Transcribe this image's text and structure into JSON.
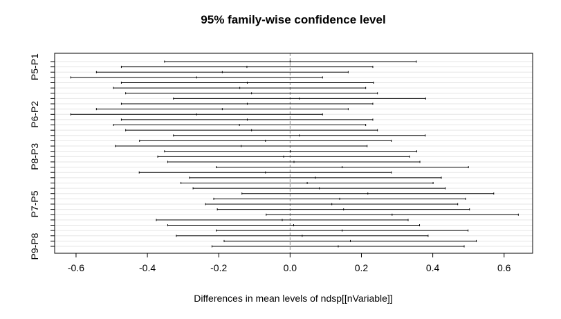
{
  "chart_data": {
    "type": "interval",
    "title": "95% family-wise confidence level",
    "xlabel": "Differences in mean levels of ndsp[[nVariable]]",
    "ylabel": "",
    "xlim": [
      -0.66,
      0.68
    ],
    "x_ticks": [
      -0.6,
      -0.4,
      -0.2,
      0.0,
      0.2,
      0.4,
      0.6
    ],
    "x_tick_labels": [
      "-0.6",
      "-0.4",
      "-0.2",
      "0.0",
      "0.2",
      "0.4",
      "0.6"
    ],
    "reference_line": 0,
    "grid": "horizontal",
    "y_tick_labels_shown": [
      {
        "label": "P5-P1",
        "index": 1
      },
      {
        "label": "P6-P2",
        "index": 10
      },
      {
        "label": "P8-P3",
        "index": 18
      },
      {
        "label": "P7-P5",
        "index": 27
      },
      {
        "label": "P9-P8",
        "index": 35
      }
    ],
    "intervals": [
      {
        "lwr": -0.352,
        "est": 0.0,
        "upr": 0.354
      },
      {
        "lwr": -0.473,
        "est": -0.121,
        "upr": 0.232
      },
      {
        "lwr": -0.543,
        "est": -0.19,
        "upr": 0.163
      },
      {
        "lwr": -0.615,
        "est": -0.262,
        "upr": 0.091
      },
      {
        "lwr": -0.473,
        "est": -0.12,
        "upr": 0.234
      },
      {
        "lwr": -0.495,
        "est": -0.141,
        "upr": 0.212
      },
      {
        "lwr": -0.461,
        "est": -0.108,
        "upr": 0.245
      },
      {
        "lwr": -0.327,
        "est": 0.026,
        "upr": 0.38
      },
      {
        "lwr": -0.473,
        "est": -0.12,
        "upr": 0.232
      },
      {
        "lwr": -0.543,
        "est": -0.19,
        "upr": 0.163
      },
      {
        "lwr": -0.615,
        "est": -0.262,
        "upr": 0.091
      },
      {
        "lwr": -0.473,
        "est": -0.12,
        "upr": 0.232
      },
      {
        "lwr": -0.495,
        "est": -0.142,
        "upr": 0.212
      },
      {
        "lwr": -0.461,
        "est": -0.108,
        "upr": 0.245
      },
      {
        "lwr": -0.327,
        "est": 0.026,
        "upr": 0.379
      },
      {
        "lwr": -0.422,
        "est": -0.069,
        "upr": 0.284
      },
      {
        "lwr": -0.49,
        "est": -0.137,
        "upr": 0.216
      },
      {
        "lwr": -0.352,
        "est": 0.001,
        "upr": 0.355
      },
      {
        "lwr": -0.371,
        "est": -0.018,
        "upr": 0.335
      },
      {
        "lwr": -0.343,
        "est": 0.011,
        "upr": 0.364
      },
      {
        "lwr": -0.207,
        "est": 0.146,
        "upr": 0.5
      },
      {
        "lwr": -0.423,
        "est": -0.069,
        "upr": 0.284
      },
      {
        "lwr": -0.282,
        "est": 0.071,
        "upr": 0.424
      },
      {
        "lwr": -0.306,
        "est": 0.048,
        "upr": 0.401
      },
      {
        "lwr": -0.272,
        "est": 0.082,
        "upr": 0.435
      },
      {
        "lwr": -0.135,
        "est": 0.218,
        "upr": 0.571
      },
      {
        "lwr": -0.214,
        "est": 0.139,
        "upr": 0.492
      },
      {
        "lwr": -0.237,
        "est": 0.117,
        "upr": 0.47
      },
      {
        "lwr": -0.204,
        "est": 0.15,
        "upr": 0.503
      },
      {
        "lwr": -0.067,
        "est": 0.286,
        "upr": 0.64
      },
      {
        "lwr": -0.375,
        "est": -0.022,
        "upr": 0.331
      },
      {
        "lwr": -0.343,
        "est": 0.01,
        "upr": 0.363
      },
      {
        "lwr": -0.207,
        "est": 0.146,
        "upr": 0.499
      },
      {
        "lwr": -0.319,
        "est": 0.034,
        "upr": 0.387
      },
      {
        "lwr": -0.185,
        "est": 0.169,
        "upr": 0.522
      },
      {
        "lwr": -0.219,
        "est": 0.135,
        "upr": 0.488
      }
    ]
  }
}
